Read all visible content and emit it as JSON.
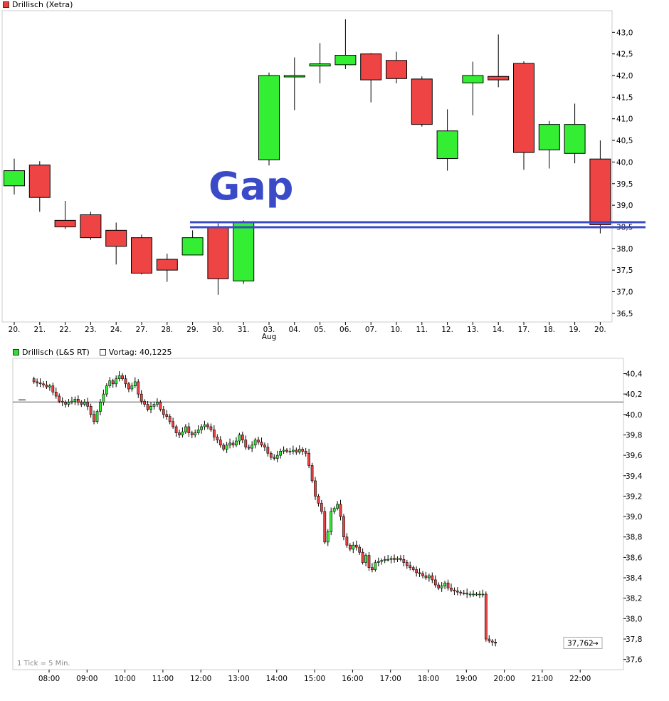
{
  "top": {
    "legend_label": "Drillisch (Xetra)",
    "legend_color": "#e84040",
    "annotation_text": "Gap",
    "annotation_color": "#3b4bc8",
    "annotation_level": 38.55
  },
  "bottom": {
    "legend_label": "Drillisch (L&S RT)",
    "legend_color": "#33dd33",
    "prev_close_label": "Vortag: 40,1225",
    "prev_close_value": 40.1225,
    "last_price_label": "37,762",
    "last_price_value": 37.762,
    "tick_note": "1 Tick = 5 Min."
  },
  "colors": {
    "up": "#33ee33",
    "down": "#ee4444",
    "outline": "#000000",
    "gap_line": "#3b4bc8",
    "grid_frame": "#cccccc"
  },
  "chart_data": [
    {
      "type": "candlestick",
      "title": "Drillisch (Xetra)",
      "categories": [
        "20.",
        "21.",
        "22.",
        "23.",
        "24.",
        "27.",
        "28.",
        "29.",
        "30.",
        "31.",
        "03.",
        "04.",
        "05.",
        "06.",
        "07.",
        "10.",
        "11.",
        "12.",
        "13.",
        "14.",
        "17.",
        "18.",
        "19.",
        "20."
      ],
      "category_sublabels": {
        "03.": "Aug"
      },
      "open": [
        39.45,
        39.93,
        38.65,
        38.78,
        38.42,
        38.25,
        37.75,
        37.85,
        38.5,
        37.25,
        40.05,
        41.98,
        42.22,
        42.25,
        42.5,
        42.35,
        41.92,
        40.08,
        41.83,
        41.98,
        42.28,
        40.28,
        40.2,
        40.07
      ],
      "high": [
        40.08,
        40.02,
        39.1,
        38.85,
        38.6,
        38.32,
        37.88,
        38.42,
        38.58,
        38.65,
        42.07,
        42.42,
        42.75,
        43.3,
        42.52,
        42.55,
        41.98,
        41.22,
        42.32,
        42.95,
        42.33,
        40.95,
        41.35,
        40.5
      ],
      "low": [
        39.25,
        38.85,
        38.45,
        38.2,
        37.63,
        37.4,
        37.23,
        37.85,
        36.93,
        37.18,
        39.92,
        41.2,
        41.82,
        42.15,
        41.38,
        41.82,
        40.82,
        39.8,
        41.08,
        41.73,
        39.82,
        39.85,
        39.97,
        38.35
      ],
      "close": [
        39.8,
        39.18,
        38.5,
        38.25,
        38.05,
        37.43,
        37.5,
        38.25,
        37.3,
        38.62,
        42.0,
        42.0,
        42.27,
        42.47,
        41.9,
        41.93,
        40.87,
        40.72,
        42.0,
        41.9,
        40.22,
        40.87,
        40.87,
        38.55
      ],
      "ylim": [
        36.3,
        43.5
      ],
      "yticks": [
        "36,5",
        "37,0",
        "37,5",
        "38,0",
        "38,5",
        "39,0",
        "39,5",
        "40,0",
        "40,5",
        "41,0",
        "41,5",
        "42,0",
        "42,5",
        "43,0"
      ],
      "ytick_values": [
        36.5,
        37.0,
        37.5,
        38.0,
        38.5,
        39.0,
        39.5,
        40.0,
        40.5,
        41.0,
        41.5,
        42.0,
        42.5,
        43.0
      ]
    },
    {
      "type": "candlestick",
      "title": "Drillisch (L&S RT)",
      "x_start_hour": 7.6,
      "bar_minutes": 5,
      "xticks": [
        "08:00",
        "09:00",
        "10:00",
        "11:00",
        "12:00",
        "13:00",
        "14:00",
        "15:00",
        "16:00",
        "17:00",
        "18:00",
        "19:00",
        "20:00",
        "21:00",
        "22:00"
      ],
      "xtick_hours": [
        8,
        9,
        10,
        11,
        12,
        13,
        14,
        15,
        16,
        17,
        18,
        19,
        20,
        21,
        22
      ],
      "closes": [
        40.32,
        40.31,
        40.3,
        40.29,
        40.27,
        40.28,
        40.22,
        40.18,
        40.13,
        40.12,
        40.1,
        40.12,
        40.13,
        40.15,
        40.12,
        40.1,
        40.12,
        40.08,
        40.0,
        39.93,
        40.03,
        40.12,
        40.2,
        40.28,
        40.33,
        40.3,
        40.35,
        40.38,
        40.35,
        40.3,
        40.25,
        40.28,
        40.32,
        40.2,
        40.13,
        40.1,
        40.05,
        40.08,
        40.1,
        40.12,
        40.05,
        40.0,
        39.98,
        39.93,
        39.88,
        39.82,
        39.8,
        39.83,
        39.88,
        39.82,
        39.8,
        39.82,
        39.85,
        39.88,
        39.9,
        39.88,
        39.85,
        39.78,
        39.75,
        39.7,
        39.66,
        39.7,
        39.72,
        39.7,
        39.74,
        39.8,
        39.75,
        39.68,
        39.67,
        39.7,
        39.75,
        39.73,
        39.7,
        39.68,
        39.62,
        39.58,
        39.57,
        39.6,
        39.64,
        39.65,
        39.64,
        39.64,
        39.65,
        39.63,
        39.66,
        39.64,
        39.62,
        39.5,
        39.35,
        39.2,
        39.13,
        39.05,
        38.75,
        38.85,
        39.05,
        39.08,
        39.12,
        39.0,
        38.8,
        38.72,
        38.68,
        38.72,
        38.7,
        38.65,
        38.55,
        38.62,
        38.5,
        38.48,
        38.55,
        38.56,
        38.57,
        38.58,
        38.58,
        38.59,
        38.58,
        38.59,
        38.58,
        38.55,
        38.52,
        38.5,
        38.48,
        38.45,
        38.44,
        38.42,
        38.4,
        38.42,
        38.38,
        38.33,
        38.3,
        38.32,
        38.35,
        38.3,
        38.28,
        38.27,
        38.26,
        38.25,
        38.25,
        38.24,
        38.24,
        38.24,
        38.24,
        38.24,
        38.24,
        37.8,
        37.78,
        37.77,
        37.76
      ]
    }
  ]
}
